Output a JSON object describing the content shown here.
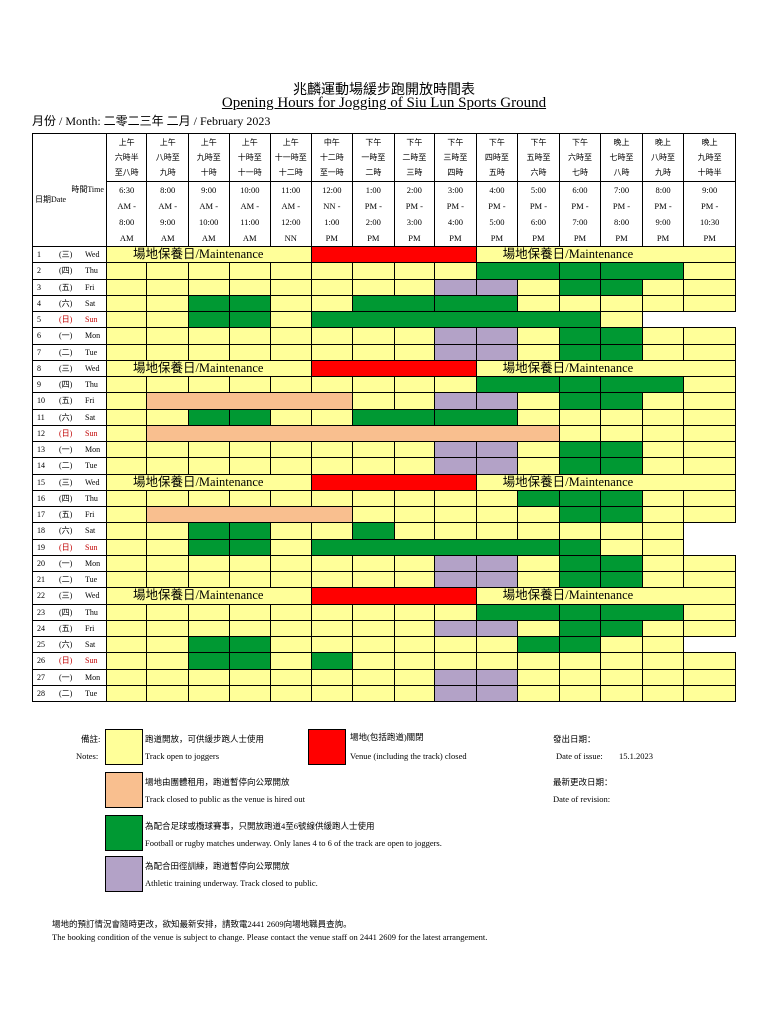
{
  "title_zh": "兆麟運動場緩步跑開放時間表",
  "title_en": "Opening Hours for Jogging of Siu Lun Sports Ground",
  "month_label": "月份 / Month: 二零二三年 二月 / February 2023",
  "header": {
    "time_label": "時間Time",
    "date_label": "日期Date",
    "slots_zh": [
      [
        "上午",
        "六時半",
        "至八時"
      ],
      [
        "上午",
        "八時至",
        "九時"
      ],
      [
        "上午",
        "九時至",
        "十時"
      ],
      [
        "上午",
        "十時至",
        "十一時"
      ],
      [
        "上午",
        "十一時至",
        "十二時"
      ],
      [
        "中午",
        "十二時",
        "至一時"
      ],
      [
        "下午",
        "一時至",
        "二時"
      ],
      [
        "下午",
        "二時至",
        "三時"
      ],
      [
        "下午",
        "三時至",
        "四時"
      ],
      [
        "下午",
        "四時至",
        "五時"
      ],
      [
        "下午",
        "五時至",
        "六時"
      ],
      [
        "下午",
        "六時至",
        "七時"
      ],
      [
        "晚上",
        "七時至",
        "八時"
      ],
      [
        "晚上",
        "八時至",
        "九時"
      ],
      [
        "晚上",
        "九時至",
        "十時半"
      ]
    ],
    "slots_en": [
      [
        "6:30",
        "AM -",
        "8:00",
        "AM"
      ],
      [
        "8:00",
        "AM -",
        "9:00",
        "AM"
      ],
      [
        "9:00",
        "AM -",
        "10:00",
        "AM"
      ],
      [
        "10:00",
        "AM -",
        "11:00",
        "AM"
      ],
      [
        "11:00",
        "AM -",
        "12:00",
        "NN"
      ],
      [
        "12:00",
        "NN -",
        "1:00",
        "PM"
      ],
      [
        "1:00",
        "PM -",
        "2:00",
        "PM"
      ],
      [
        "2:00",
        "PM -",
        "3:00",
        "PM"
      ],
      [
        "3:00",
        "PM -",
        "4:00",
        "PM"
      ],
      [
        "4:00",
        "PM -",
        "5:00",
        "PM"
      ],
      [
        "5:00",
        "PM -",
        "6:00",
        "PM"
      ],
      [
        "6:00",
        "PM -",
        "7:00",
        "PM"
      ],
      [
        "7:00",
        "PM -",
        "8:00",
        "PM"
      ],
      [
        "8:00",
        "PM -",
        "9:00",
        "PM"
      ],
      [
        "9:00",
        "PM -",
        "10:30",
        "PM"
      ]
    ]
  },
  "maintenance_label": "場地保養日/Maintenance",
  "days": [
    {
      "num": "1",
      "zh": "(三)",
      "en": "Wed",
      "type": "maint"
    },
    {
      "num": "2",
      "zh": "(四)",
      "en": "Thu",
      "type": "thu"
    },
    {
      "num": "3",
      "zh": "(五)",
      "en": "Fri",
      "type": "fri"
    },
    {
      "num": "4",
      "zh": "(六)",
      "en": "Sat",
      "type": "sat"
    },
    {
      "num": "5",
      "zh": "(日)",
      "en": "Sun",
      "type": "sun5",
      "sunday": true
    },
    {
      "num": "6",
      "zh": "(一)",
      "en": "Mon",
      "type": "mon"
    },
    {
      "num": "7",
      "zh": "(二)",
      "en": "Tue",
      "type": "tue"
    },
    {
      "num": "8",
      "zh": "(三)",
      "en": "Wed",
      "type": "maint"
    },
    {
      "num": "9",
      "zh": "(四)",
      "en": "Thu",
      "type": "thu"
    },
    {
      "num": "10",
      "zh": "(五)",
      "en": "Fri",
      "type": "frihire"
    },
    {
      "num": "11",
      "zh": "(六)",
      "en": "Sat",
      "type": "sat"
    },
    {
      "num": "12",
      "zh": "(日)",
      "en": "Sun",
      "type": "sunhire",
      "sunday": true
    },
    {
      "num": "13",
      "zh": "(一)",
      "en": "Mon",
      "type": "mon"
    },
    {
      "num": "14",
      "zh": "(二)",
      "en": "Tue",
      "type": "tue"
    },
    {
      "num": "15",
      "zh": "(三)",
      "en": "Wed",
      "type": "maint"
    },
    {
      "num": "16",
      "zh": "(四)",
      "en": "Thu",
      "type": "thu16"
    },
    {
      "num": "17",
      "zh": "(五)",
      "en": "Fri",
      "type": "frihire17"
    },
    {
      "num": "18",
      "zh": "(六)",
      "en": "Sat",
      "type": "sat18"
    },
    {
      "num": "19",
      "zh": "(日)",
      "en": "Sun",
      "type": "sun19",
      "sunday": true
    },
    {
      "num": "20",
      "zh": "(一)",
      "en": "Mon",
      "type": "mon"
    },
    {
      "num": "21",
      "zh": "(二)",
      "en": "Tue",
      "type": "tue"
    },
    {
      "num": "22",
      "zh": "(三)",
      "en": "Wed",
      "type": "maint"
    },
    {
      "num": "23",
      "zh": "(四)",
      "en": "Thu",
      "type": "thu"
    },
    {
      "num": "24",
      "zh": "(五)",
      "en": "Fri",
      "type": "fri"
    },
    {
      "num": "25",
      "zh": "(六)",
      "en": "Sat",
      "type": "sat25"
    },
    {
      "num": "26",
      "zh": "(日)",
      "en": "Sun",
      "type": "sun26",
      "sunday": true
    },
    {
      "num": "27",
      "zh": "(一)",
      "en": "Mon",
      "type": "mon27"
    },
    {
      "num": "28",
      "zh": "(二)",
      "en": "Tue",
      "type": "tue28"
    }
  ],
  "legend": {
    "notes_zh": "備註:",
    "notes_en": "Notes:",
    "open_zh": "跑道開放，可供緩步跑人士使用",
    "open_en": "Track open to joggers",
    "closed_zh": "場地(包括跑道)關閉",
    "closed_en": "Venue (including the track) closed",
    "hired_zh": "場地由團體租用，跑道暫停向公眾開放",
    "hired_en": "Track closed to public as the venue is hired out",
    "football_zh": "為配合足球或欖球賽事，只開放跑道4至6號線供緩跑人士使用",
    "football_en": "Football or rugby matches underway.  Only lanes 4 to 6 of the track are open to joggers.",
    "athletic_zh": "為配合田徑訓練，跑道暫停向公眾開放",
    "athletic_en": "Athletic training underway.  Track closed to public.",
    "issue_zh": "發出日期：",
    "issue_en": "Date of issue:",
    "issue_date": "15.1.2023",
    "revision_zh": "最新更改日期：",
    "revision_en": "Date of revision:",
    "colors": {
      "open": "#ffff99",
      "closed": "#ff0000",
      "hired": "#f9bf8f",
      "football": "#009933",
      "athletic": "#b3a2c7"
    }
  },
  "footer_zh": "場地的預訂情況會隨時更改，欲知最新安排，請致電2441 2609向場地職員查詢。",
  "footer_en": "The booking condition of the venue is subject to change. Please contact the venue staff on 2441 2609 for the latest arrangement."
}
